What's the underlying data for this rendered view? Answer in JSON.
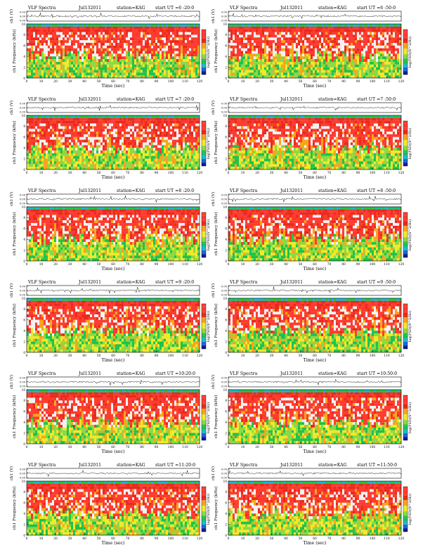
{
  "colors": {
    "background": "#ffffff",
    "axis": "#000000",
    "trace": "#1a1a1a",
    "colormap": [
      "#f2f2f2",
      "#ff3b2f",
      "#e82a1f",
      "#f6a51c",
      "#f0e92b",
      "#8cd943",
      "#20c24a",
      "#18b8c9",
      "#1c63d8",
      "#0a1a9a"
    ]
  },
  "chart_data": [
    {
      "type": "heatmap",
      "title": "VLF Spectra",
      "date": "Jul132011",
      "station": "station=KAG",
      "start": "start UT =6 :20:0",
      "trace_ylabel": "ch1 (V)",
      "trace_yticks": [
        "0.00",
        "0.00",
        "0.00"
      ],
      "spectrum_ylabel": "ch1 Frequency (kHz)",
      "spectrum_yticks": [
        "0",
        "2",
        "4",
        "6",
        "8",
        "10"
      ],
      "xticks": [
        "0",
        "10",
        "20",
        "30",
        "40",
        "50",
        "60",
        "70",
        "80",
        "90",
        "100",
        "110",
        "120"
      ],
      "xlabel": "Time (sec)",
      "xlim": [
        0,
        120
      ],
      "ylim": [
        0,
        10
      ],
      "colorbar_label": "log(PSD)(V^2/Hz)"
    },
    {
      "type": "heatmap",
      "title": "VLF Spectra",
      "date": "Jul132011",
      "station": "station=KAG",
      "start": "start UT =6 :50:0",
      "trace_ylabel": "ch1 (V)",
      "trace_yticks": [
        "0.00",
        "0.00",
        "0.00"
      ],
      "spectrum_ylabel": "ch1 Frequency (kHz)",
      "spectrum_yticks": [
        "0",
        "2",
        "4",
        "6",
        "8",
        "10"
      ],
      "xticks": [
        "0",
        "10",
        "20",
        "30",
        "40",
        "50",
        "60",
        "70",
        "80",
        "90",
        "100",
        "110",
        "120"
      ],
      "xlabel": "Time (sec)",
      "xlim": [
        0,
        120
      ],
      "ylim": [
        0,
        10
      ],
      "colorbar_label": "log(PSD)(V^2/Hz)"
    },
    {
      "type": "heatmap",
      "title": "VLF Spectra",
      "date": "Jul132011",
      "station": "station=KAG",
      "start": "start UT =7 :20:0",
      "trace_ylabel": "ch1 (V)",
      "trace_yticks": [
        "0.00",
        "0.00",
        "0.00"
      ],
      "spectrum_ylabel": "ch1 Frequency (kHz)",
      "spectrum_yticks": [
        "0",
        "2",
        "4",
        "6",
        "8",
        "10"
      ],
      "xticks": [
        "0",
        "10",
        "20",
        "30",
        "40",
        "50",
        "60",
        "70",
        "80",
        "90",
        "100",
        "110",
        "120"
      ],
      "xlabel": "Time (sec)",
      "xlim": [
        0,
        120
      ],
      "ylim": [
        0,
        10
      ],
      "colorbar_label": "log(PSD)(V^2/Hz)"
    },
    {
      "type": "heatmap",
      "title": "VLF Spectra",
      "date": "Jul132011",
      "station": "station=KAG",
      "start": "start UT =7 :50:0",
      "trace_ylabel": "ch1 (V)",
      "trace_yticks": [
        "0.00",
        "0.00",
        "0.00"
      ],
      "spectrum_ylabel": "ch1 Frequency (kHz)",
      "spectrum_yticks": [
        "0",
        "2",
        "4",
        "6",
        "8",
        "10"
      ],
      "xticks": [
        "0",
        "10",
        "20",
        "30",
        "40",
        "50",
        "60",
        "70",
        "80",
        "90",
        "100",
        "110",
        "120"
      ],
      "xlabel": "Time (sec)",
      "xlim": [
        0,
        120
      ],
      "ylim": [
        0,
        10
      ],
      "colorbar_label": "log(PSD)(V^2/Hz)"
    },
    {
      "type": "heatmap",
      "title": "VLF Spectra",
      "date": "Jul132011",
      "station": "station=KAG",
      "start": "start UT =8 :20:0",
      "trace_ylabel": "ch1 (V)",
      "trace_yticks": [
        "0.00",
        "0.00",
        "0.00"
      ],
      "spectrum_ylabel": "ch1 Frequency (kHz)",
      "spectrum_yticks": [
        "0",
        "2",
        "4",
        "6",
        "8",
        "10"
      ],
      "xticks": [
        "0",
        "10",
        "20",
        "30",
        "40",
        "50",
        "60",
        "70",
        "80",
        "90",
        "100",
        "110",
        "120"
      ],
      "xlabel": "Time (sec)",
      "xlim": [
        0,
        120
      ],
      "ylim": [
        0,
        10
      ],
      "colorbar_label": "log(PSD)(V^2/Hz)"
    },
    {
      "type": "heatmap",
      "title": "VLF Spectra",
      "date": "Jul132011",
      "station": "station=KAG",
      "start": "start UT =8 :50:0",
      "trace_ylabel": "ch1 (V)",
      "trace_yticks": [
        "0.00",
        "0.00",
        "0.00"
      ],
      "spectrum_ylabel": "ch1 Frequency (kHz)",
      "spectrum_yticks": [
        "0",
        "2",
        "4",
        "6",
        "8",
        "10"
      ],
      "xticks": [
        "0",
        "10",
        "20",
        "30",
        "40",
        "50",
        "60",
        "70",
        "80",
        "90",
        "100",
        "110",
        "120"
      ],
      "xlabel": "Time (sec)",
      "xlim": [
        0,
        120
      ],
      "ylim": [
        0,
        10
      ],
      "colorbar_label": "log(PSD)(V^2/Hz)"
    },
    {
      "type": "heatmap",
      "title": "VLF Spectra",
      "date": "Jul132011",
      "station": "station=KAG",
      "start": "start UT =9 :20:0",
      "trace_ylabel": "ch1 (V)",
      "trace_yticks": [
        "0.00",
        "0.00",
        "0.00"
      ],
      "spectrum_ylabel": "ch1 Frequency (kHz)",
      "spectrum_yticks": [
        "0",
        "2",
        "4",
        "6",
        "8",
        "10"
      ],
      "xticks": [
        "0",
        "10",
        "20",
        "30",
        "40",
        "50",
        "60",
        "70",
        "80",
        "90",
        "100",
        "110",
        "120"
      ],
      "xlabel": "Time (sec)",
      "xlim": [
        0,
        120
      ],
      "ylim": [
        0,
        10
      ],
      "colorbar_label": "log(PSD)(V^2/Hz)"
    },
    {
      "type": "heatmap",
      "title": "VLF Spectra",
      "date": "Jul132011",
      "station": "station=KAG",
      "start": "start UT =9 :50:0",
      "trace_ylabel": "ch1 (V)",
      "trace_yticks": [
        "0.00",
        "0.00",
        "0.00"
      ],
      "spectrum_ylabel": "ch1 Frequency (kHz)",
      "spectrum_yticks": [
        "0",
        "2",
        "4",
        "6",
        "8",
        "10"
      ],
      "xticks": [
        "0",
        "10",
        "20",
        "30",
        "40",
        "50",
        "60",
        "70",
        "80",
        "90",
        "100",
        "110",
        "120"
      ],
      "xlabel": "Time (sec)",
      "xlim": [
        0,
        120
      ],
      "ylim": [
        0,
        10
      ],
      "colorbar_label": "log(PSD)(V^2/Hz)"
    },
    {
      "type": "heatmap",
      "title": "VLF Spectra",
      "date": "Jul132011",
      "station": "station=KAG",
      "start": "start UT =10:20:0",
      "trace_ylabel": "ch1 (V)",
      "trace_yticks": [
        "0.00",
        "0.00",
        "0.00"
      ],
      "spectrum_ylabel": "ch1 Frequency (kHz)",
      "spectrum_yticks": [
        "0",
        "2",
        "4",
        "6",
        "8",
        "10"
      ],
      "xticks": [
        "0",
        "10",
        "20",
        "30",
        "40",
        "50",
        "60",
        "70",
        "80",
        "90",
        "100",
        "110",
        "120"
      ],
      "xlabel": "Time (sec)",
      "xlim": [
        0,
        120
      ],
      "ylim": [
        0,
        10
      ],
      "colorbar_label": "log(PSD)(V^2/Hz)"
    },
    {
      "type": "heatmap",
      "title": "VLF Spectra",
      "date": "Jul132011",
      "station": "station=KAG",
      "start": "start UT =10:50:0",
      "trace_ylabel": "ch1 (V)",
      "trace_yticks": [
        "0.00",
        "0.00",
        "0.00"
      ],
      "spectrum_ylabel": "ch1 Frequency (kHz)",
      "spectrum_yticks": [
        "0",
        "2",
        "4",
        "6",
        "8",
        "10"
      ],
      "xticks": [
        "0",
        "10",
        "20",
        "30",
        "40",
        "50",
        "60",
        "70",
        "80",
        "90",
        "100",
        "110",
        "120"
      ],
      "xlabel": "Time (sec)",
      "xlim": [
        0,
        120
      ],
      "ylim": [
        0,
        10
      ],
      "colorbar_label": "log(PSD)(V^2/Hz)"
    },
    {
      "type": "heatmap",
      "title": "VLF Spectra",
      "date": "Jul132011",
      "station": "station=KAG",
      "start": "start UT =11:20:0",
      "trace_ylabel": "ch1 (V)",
      "trace_yticks": [
        "0.00",
        "0.00",
        "0.00"
      ],
      "spectrum_ylabel": "ch1 Frequency (kHz)",
      "spectrum_yticks": [
        "0",
        "2",
        "4",
        "6",
        "8",
        "10"
      ],
      "xticks": [
        "0",
        "10",
        "20",
        "30",
        "40",
        "50",
        "60",
        "70",
        "80",
        "90",
        "100",
        "110",
        "120"
      ],
      "xlabel": "Time (sec)",
      "xlim": [
        0,
        120
      ],
      "ylim": [
        0,
        10
      ],
      "colorbar_label": "log(PSD)(V^2/Hz)"
    },
    {
      "type": "heatmap",
      "title": "VLF Spectra",
      "date": "Jul132011",
      "station": "station=KAG",
      "start": "start UT =11:50:0",
      "trace_ylabel": "ch1 (V)",
      "trace_yticks": [
        "0.00",
        "0.00",
        "0.00"
      ],
      "spectrum_ylabel": "ch1 Frequency (kHz)",
      "spectrum_yticks": [
        "0",
        "2",
        "4",
        "6",
        "8",
        "10"
      ],
      "xticks": [
        "0",
        "10",
        "20",
        "30",
        "40",
        "50",
        "60",
        "70",
        "80",
        "90",
        "100",
        "110",
        "120"
      ],
      "xlabel": "Time (sec)",
      "xlim": [
        0,
        120
      ],
      "ylim": [
        0,
        10
      ],
      "colorbar_label": "log(PSD)(V^2/Hz)"
    }
  ]
}
